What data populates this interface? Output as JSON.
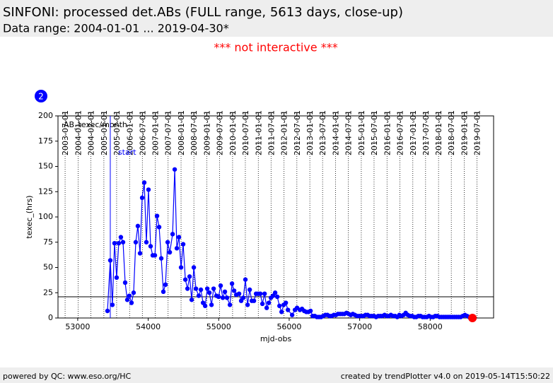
{
  "header": {
    "title": "SINFONI: processed det.ABs (FULL range, 5613 days, close-up)",
    "subtitle": "Data range: 2004-01-01 ... 2019-04-30*",
    "notice": "*** not interactive ***",
    "badge": "2"
  },
  "footer": {
    "left": "powered by QC: www.eso.org/HC",
    "right": "created by trendPlotter v4.0 on 2019-05-14T15:50:22"
  },
  "chart_data": {
    "type": "line",
    "panel_label": "AB_texec/month",
    "xlabel": "mjd-obs",
    "ylabel": "texec_(hrs)",
    "xlim": [
      52720,
      58900
    ],
    "ylim": [
      0,
      200
    ],
    "xticks": [
      53000,
      54000,
      55000,
      56000,
      57000,
      58000
    ],
    "yticks": [
      0,
      25,
      50,
      75,
      100,
      125,
      150,
      175,
      200
    ],
    "x2ticks": [
      {
        "value": 52821,
        "label": "2003-07-01"
      },
      {
        "value": 53005,
        "label": "2004-01-01"
      },
      {
        "value": 53187,
        "label": "2004-07-01"
      },
      {
        "value": 53371,
        "label": "2005-01-01"
      },
      {
        "value": 53552,
        "label": "2005-07-01"
      },
      {
        "value": 53736,
        "label": "2006-01-01"
      },
      {
        "value": 53917,
        "label": "2006-07-01"
      },
      {
        "value": 54101,
        "label": "2007-01-01"
      },
      {
        "value": 54282,
        "label": "2007-07-01"
      },
      {
        "value": 54466,
        "label": "2008-01-01"
      },
      {
        "value": 54648,
        "label": "2008-07-01"
      },
      {
        "value": 54832,
        "label": "2009-01-01"
      },
      {
        "value": 55013,
        "label": "2009-07-01"
      },
      {
        "value": 55197,
        "label": "2010-01-01"
      },
      {
        "value": 55378,
        "label": "2010-07-01"
      },
      {
        "value": 55562,
        "label": "2011-01-01"
      },
      {
        "value": 55743,
        "label": "2011-07-01"
      },
      {
        "value": 55927,
        "label": "2012-01-01"
      },
      {
        "value": 56109,
        "label": "2012-07-01"
      },
      {
        "value": 56293,
        "label": "2013-01-01"
      },
      {
        "value": 56474,
        "label": "2013-07-01"
      },
      {
        "value": 56658,
        "label": "2014-01-01"
      },
      {
        "value": 56839,
        "label": "2014-07-01"
      },
      {
        "value": 57023,
        "label": "2015-01-01"
      },
      {
        "value": 57204,
        "label": "2015-07-01"
      },
      {
        "value": 57388,
        "label": "2016-01-01"
      },
      {
        "value": 57570,
        "label": "2016-07-01"
      },
      {
        "value": 57754,
        "label": "2017-01-01"
      },
      {
        "value": 57935,
        "label": "2017-07-01"
      },
      {
        "value": 58119,
        "label": "2018-01-01"
      },
      {
        "value": 58300,
        "label": "2018-07-01"
      },
      {
        "value": 58484,
        "label": "2019-01-01"
      },
      {
        "value": 58665,
        "label": "2019-07-01"
      }
    ],
    "hline": 21,
    "annotation": {
      "text": "start",
      "x": 53462
    },
    "series": [
      {
        "color": "#0000ff",
        "x": [
          53422,
          53462,
          53492,
          53522,
          53552,
          53582,
          53612,
          53643,
          53673,
          53703,
          53733,
          53763,
          53793,
          53823,
          53853,
          53884,
          53914,
          53944,
          53974,
          54004,
          54034,
          54064,
          54095,
          54125,
          54155,
          54185,
          54215,
          54245,
          54276,
          54306,
          54346,
          54376,
          54406,
          54436,
          54466,
          54496,
          54527,
          54557,
          54587,
          54617,
          54647,
          54677,
          54717,
          54747,
          54778,
          54808,
          54838,
          54868,
          54898,
          54928,
          54968,
          54998,
          55028,
          55058,
          55088,
          55118,
          55159,
          55189,
          55219,
          55249,
          55289,
          55319,
          55349,
          55379,
          55410,
          55440,
          55470,
          55500,
          55530,
          55560,
          55590,
          55620,
          55651,
          55681,
          55711,
          55741,
          55771,
          55801,
          55831,
          55862,
          55892,
          55922,
          55952,
          55982,
          56042,
          56082,
          56112,
          56152,
          56182,
          56213,
          56243,
          56273,
          56303,
          56333,
          56363,
          56393,
          56423,
          56453,
          56483,
          56513,
          56543,
          56573,
          56603,
          56633,
          56663,
          56693,
          56723,
          56753,
          56783,
          56813,
          56843,
          56873,
          56903,
          56933,
          56963,
          56993,
          57023,
          57053,
          57083,
          57113,
          57143,
          57173,
          57203,
          57233,
          57263,
          57293,
          57323,
          57353,
          57383,
          57413,
          57443,
          57473,
          57503,
          57533,
          57563,
          57593,
          57623,
          57653,
          57683,
          57713,
          57743,
          57773,
          57803,
          57833,
          57863,
          57893,
          57923,
          57953,
          57983,
          58013,
          58043,
          58073,
          58103,
          58133,
          58163,
          58193,
          58223,
          58253,
          58283,
          58313,
          58343,
          58373,
          58403,
          58433,
          58463,
          58493,
          58523,
          58553,
          58583
        ],
        "values": [
          7,
          57,
          13,
          74,
          40,
          74,
          80,
          75,
          35,
          18,
          22,
          15,
          25,
          75,
          91,
          64,
          119,
          134,
          75,
          127,
          71,
          62,
          62,
          101,
          90,
          59,
          26,
          33,
          75,
          65,
          83,
          147,
          69,
          80,
          50,
          73,
          38,
          29,
          41,
          18,
          50,
          29,
          22,
          28,
          15,
          12,
          29,
          25,
          13,
          29,
          22,
          21,
          32,
          20,
          26,
          20,
          13,
          34,
          27,
          23,
          24,
          17,
          20,
          38,
          13,
          28,
          17,
          17,
          24,
          24,
          24,
          14,
          24,
          10,
          15,
          20,
          22,
          25,
          21,
          12,
          6,
          13,
          15,
          8,
          3,
          8,
          10,
          8,
          9,
          7,
          6,
          6,
          7,
          2,
          2,
          1,
          1,
          1,
          2,
          3,
          3,
          2,
          2,
          3,
          3,
          4,
          4,
          4,
          4,
          5,
          4,
          3,
          4,
          3,
          2,
          2,
          2,
          2,
          3,
          3,
          2,
          2,
          2,
          1,
          2,
          2,
          2,
          3,
          2,
          2,
          3,
          2,
          2,
          1,
          3,
          2,
          3,
          5,
          3,
          2,
          2,
          1,
          1,
          2,
          2,
          1,
          1,
          1,
          2,
          1,
          1,
          2,
          2,
          1,
          1,
          1,
          1,
          1,
          1,
          1,
          1,
          1,
          1,
          1,
          2,
          3,
          2,
          1,
          1
        ]
      },
      {
        "color": "#ff0000",
        "x": [
          58600
        ],
        "values": [
          0
        ]
      }
    ]
  }
}
